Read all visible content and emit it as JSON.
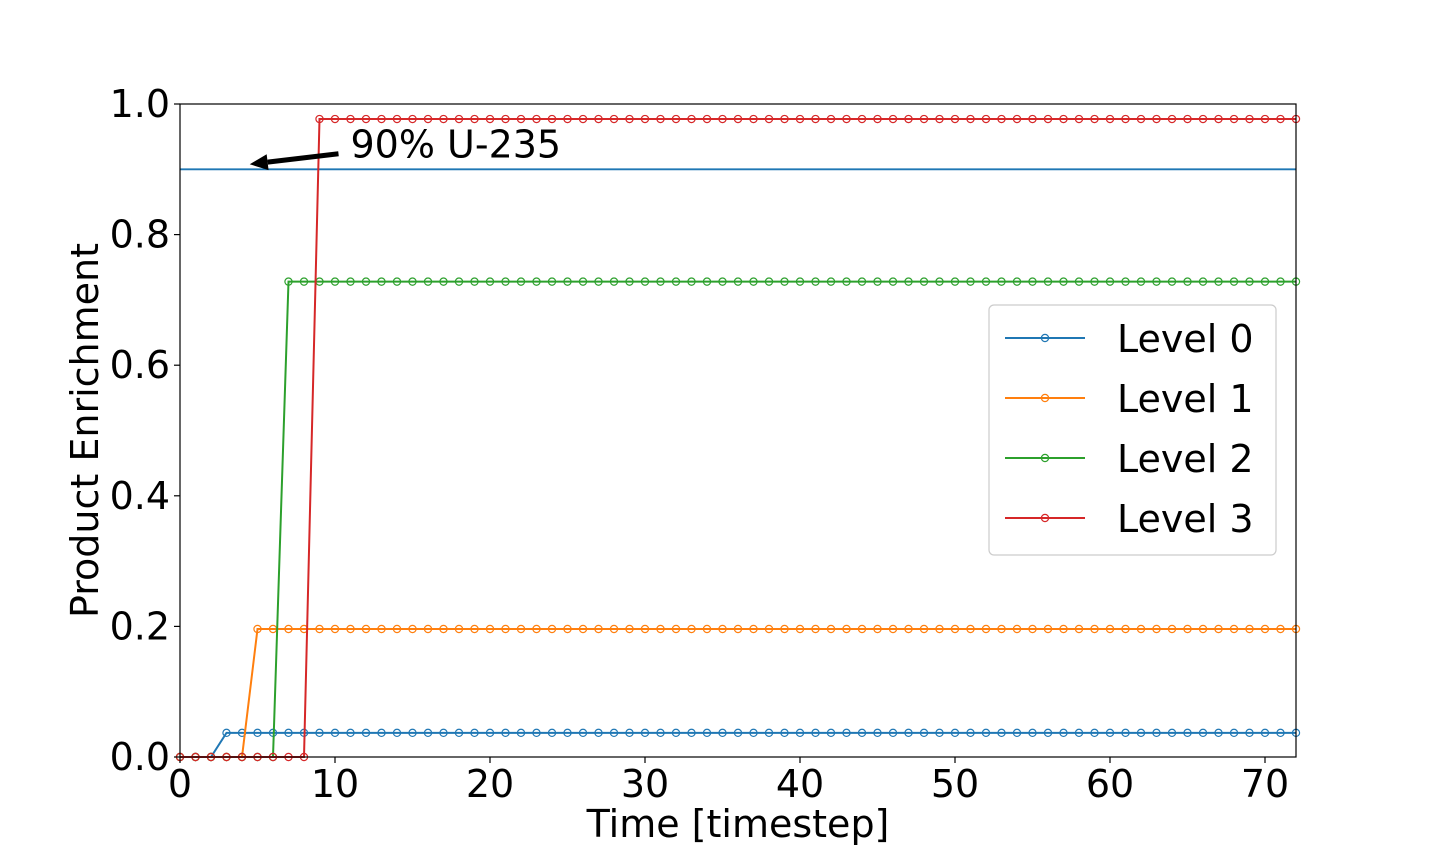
{
  "chart_data": {
    "type": "line",
    "title": "",
    "xlabel": "Time [timestep]",
    "ylabel": "Product Enrichment",
    "xlim": [
      0,
      72
    ],
    "ylim": [
      0,
      1.0
    ],
    "xticks": [
      "0",
      "10",
      "20",
      "30",
      "40",
      "50",
      "60",
      "70"
    ],
    "yticks": [
      "0.0",
      "0.2",
      "0.4",
      "0.6",
      "0.8",
      "1.0"
    ],
    "grid": false,
    "legend_position": "center-right",
    "marker": "open-circle",
    "series": [
      {
        "name": "Level 0",
        "color": "#1f77b4",
        "start_step": 3,
        "value": 0.037
      },
      {
        "name": "Level 1",
        "color": "#ff7f0e",
        "start_step": 5,
        "value": 0.196
      },
      {
        "name": "Level 2",
        "color": "#2ca02c",
        "start_step": 7,
        "value": 0.728
      },
      {
        "name": "Level 3",
        "color": "#d62728",
        "start_step": 9,
        "value": 0.977
      }
    ],
    "reference_line": {
      "y": 0.9,
      "color": "#1f77b4"
    },
    "annotation": {
      "text": "90% U-235",
      "text_at": [
        11,
        0.93
      ],
      "arrow_to": [
        4.5,
        0.9
      ]
    }
  }
}
